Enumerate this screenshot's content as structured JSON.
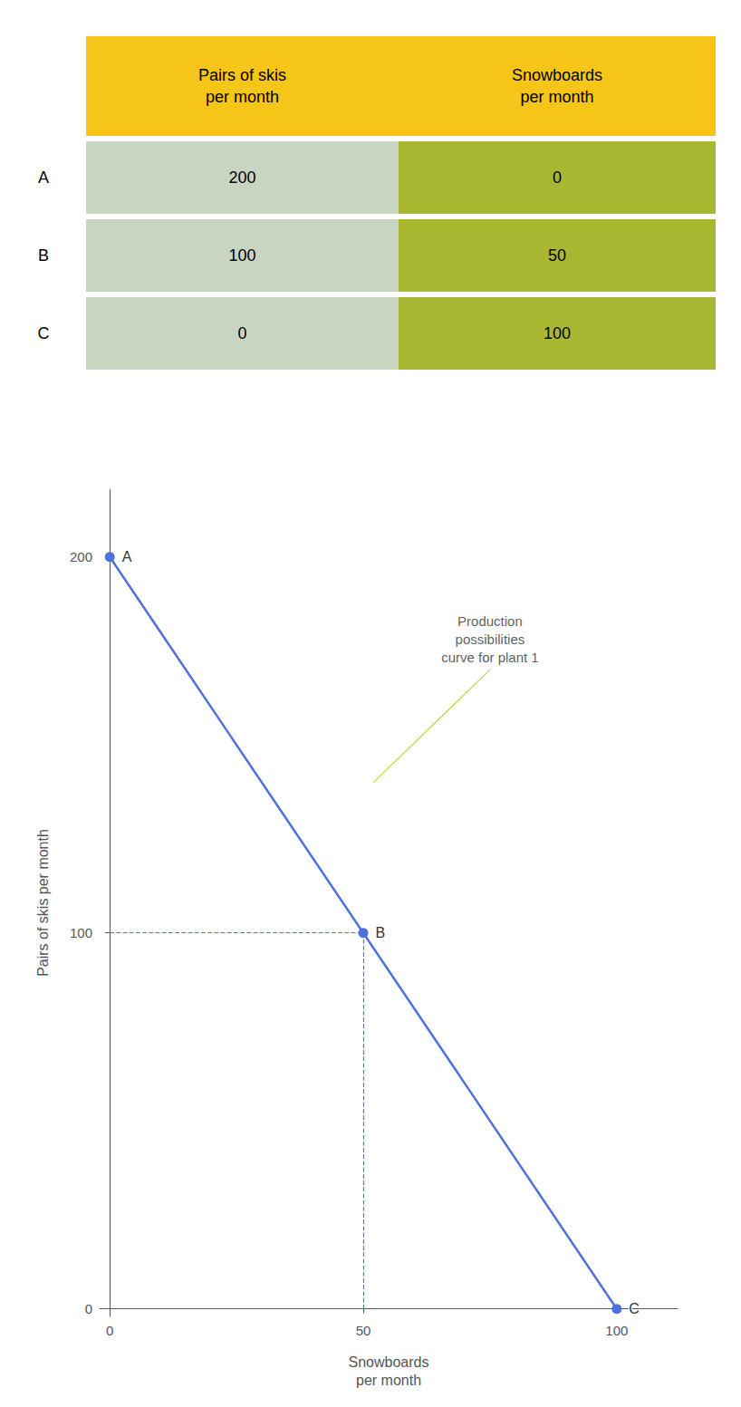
{
  "chart_data": [
    {
      "type": "table",
      "columns": [
        "Pairs of skis\nper month",
        "Snowboards\nper month"
      ],
      "row_labels": [
        "A",
        "B",
        "C"
      ],
      "rows": [
        [
          200,
          0
        ],
        [
          100,
          50
        ],
        [
          0,
          100
        ]
      ],
      "colors": [
        "#F5C518",
        "#c8d5c0",
        "#a8b832"
      ]
    },
    {
      "type": "line",
      "x": [
        0,
        50,
        100
      ],
      "values": [
        200,
        100,
        0
      ],
      "point_labels": [
        "A",
        "B",
        "C"
      ],
      "xlabel": "Snowboards\nper month",
      "ylabel": "Pairs of skis per month",
      "xlim": [
        -2,
        112
      ],
      "ylim": [
        -2,
        218
      ],
      "xticks": [
        0,
        50,
        100
      ],
      "yticks": [
        0,
        100,
        200
      ],
      "grid": false,
      "annotations": [
        {
          "text": "Production\npossibilities\ncurve for plant 1",
          "x": 75,
          "y": 170,
          "arrow_x": 52,
          "arrow_y": 140
        }
      ]
    }
  ]
}
